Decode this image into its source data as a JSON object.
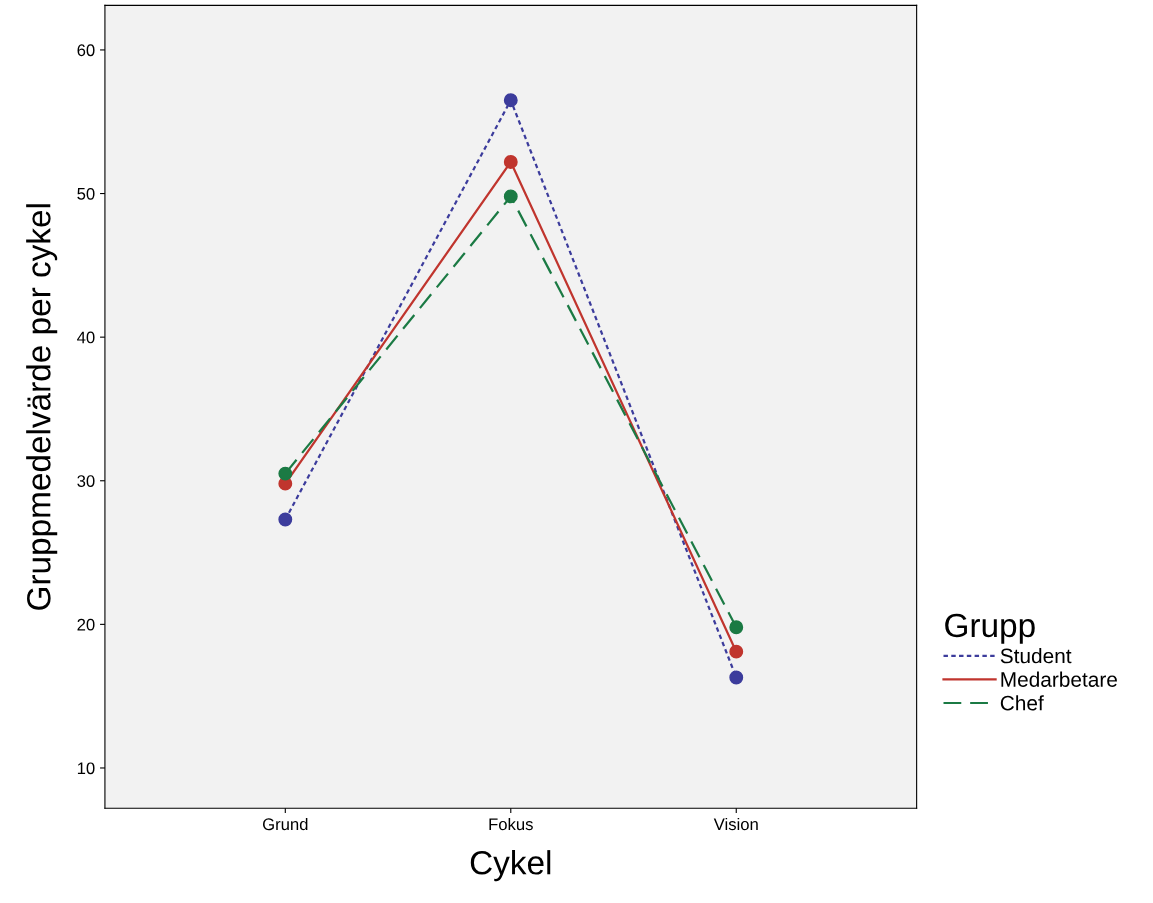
{
  "chart_data": {
    "type": "line",
    "xlabel": "Cykel",
    "ylabel": "Gruppmedelvärde per cykel",
    "legend_title": "Grupp",
    "legend": "right",
    "categories": [
      "Grund",
      "Fokus",
      "Vision"
    ],
    "ylim": [
      7.2,
      63.1
    ],
    "yticks": [
      10,
      20,
      30,
      40,
      50,
      60
    ],
    "grid": false,
    "marker": "circle",
    "series": [
      {
        "name": "Student",
        "color": "#3c3c9c",
        "line_style": "dotted",
        "values": [
          27.3,
          56.5,
          16.3
        ]
      },
      {
        "name": "Medarbetare",
        "color": "#c0352e",
        "line_style": "solid",
        "values": [
          29.8,
          52.2,
          18.1
        ]
      },
      {
        "name": "Chef",
        "color": "#1b7a44",
        "line_style": "dashed",
        "values": [
          30.5,
          49.8,
          19.8
        ]
      }
    ]
  }
}
